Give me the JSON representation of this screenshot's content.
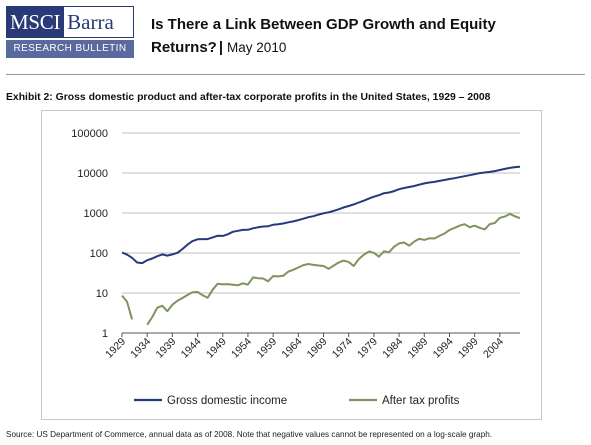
{
  "header": {
    "logo_msci": "MSCI",
    "logo_barra": "Barra",
    "logo_sub": "RESEARCH BULLETIN",
    "title_line1": "Is There a Link Between GDP Growth and Equity",
    "title_line2": "Returns?",
    "title_sep": "|",
    "date": "May 2010"
  },
  "exhibit_title": "Exhibit 2: Gross domestic product and after-tax corporate profits in the United States, 1929 – 2008",
  "source": "Source: US Department of Commerce, annual data as of 2008. Note that negative values cannot be represented on a log-scale graph.",
  "colors": {
    "gdp": "#253a7a",
    "profits": "#7f9360",
    "logo": "#2a3a78"
  },
  "chart_data": {
    "type": "line",
    "title": "",
    "xlabel": "",
    "ylabel": "",
    "yscale": "log",
    "ylim": [
      1,
      100000
    ],
    "xlim": [
      1929,
      2008
    ],
    "y_tick_labels": [
      "1",
      "10",
      "100",
      "1000",
      "10000",
      "100000"
    ],
    "x_tick_labels": [
      "1929",
      "1934",
      "1939",
      "1944",
      "1949",
      "1954",
      "1959",
      "1964",
      "1969",
      "1974",
      "1979",
      "1984",
      "1989",
      "1994",
      "1999",
      "2004"
    ],
    "grid": "horizontal",
    "legend": "bottom",
    "series": [
      {
        "name": "Gross domestic income",
        "x": [
          1929,
          1930,
          1931,
          1932,
          1933,
          1934,
          1935,
          1936,
          1937,
          1938,
          1939,
          1940,
          1941,
          1942,
          1943,
          1944,
          1945,
          1946,
          1947,
          1948,
          1949,
          1950,
          1951,
          1952,
          1953,
          1954,
          1955,
          1956,
          1957,
          1958,
          1959,
          1960,
          1961,
          1962,
          1963,
          1964,
          1965,
          1966,
          1967,
          1968,
          1969,
          1970,
          1971,
          1972,
          1973,
          1974,
          1975,
          1976,
          1977,
          1978,
          1979,
          1980,
          1981,
          1982,
          1983,
          1984,
          1985,
          1986,
          1987,
          1988,
          1989,
          1990,
          1991,
          1992,
          1993,
          1994,
          1995,
          1996,
          1997,
          1998,
          1999,
          2000,
          2001,
          2002,
          2003,
          2004,
          2005,
          2006,
          2007,
          2008
        ],
        "y": [
          103,
          91,
          76,
          58,
          56,
          66,
          73,
          83,
          92,
          86,
          92,
          101,
          126,
          162,
          198,
          220,
          223,
          223,
          245,
          270,
          268,
          294,
          339,
          358,
          379,
          381,
          414,
          438,
          461,
          467,
          507,
          526,
          545,
          586,
          618,
          664,
          719,
          787,
          832,
          910,
          985,
          1039,
          1127,
          1238,
          1383,
          1500,
          1638,
          1825,
          2030,
          2294,
          2562,
          2789,
          3128,
          3255,
          3537,
          3933,
          4220,
          4463,
          4740,
          5104,
          5484,
          5801,
          5992,
          6342,
          6667,
          7085,
          7415,
          7839,
          8332,
          8794,
          9354,
          9952,
          10286,
          10643,
          11142,
          11868,
          12638,
          13399,
          14061,
          14369
        ]
      },
      {
        "name": "After tax profits",
        "x": [
          1929,
          1930,
          1931,
          1932,
          1933,
          1934,
          1935,
          1936,
          1937,
          1938,
          1939,
          1940,
          1941,
          1942,
          1943,
          1944,
          1945,
          1946,
          1947,
          1948,
          1949,
          1950,
          1951,
          1952,
          1953,
          1954,
          1955,
          1956,
          1957,
          1958,
          1959,
          1960,
          1961,
          1962,
          1963,
          1964,
          1965,
          1966,
          1967,
          1968,
          1969,
          1970,
          1971,
          1972,
          1973,
          1974,
          1975,
          1976,
          1977,
          1978,
          1979,
          1980,
          1981,
          1982,
          1983,
          1984,
          1985,
          1986,
          1987,
          1988,
          1989,
          1990,
          1991,
          1992,
          1993,
          1994,
          1995,
          1996,
          1997,
          1998,
          1999,
          2000,
          2001,
          2002,
          2003,
          2004,
          2005,
          2006,
          2007,
          2008
        ],
        "y": [
          8.6,
          6.1,
          2.2,
          null,
          null,
          1.6,
          2.5,
          4.3,
          4.8,
          3.5,
          5.1,
          6.4,
          7.5,
          8.9,
          10.4,
          10.6,
          8.8,
          7.6,
          12.1,
          17.1,
          16.4,
          16.7,
          16.1,
          15.6,
          17.5,
          16.2,
          24.6,
          23.4,
          23.1,
          19.6,
          26.4,
          26.0,
          26.9,
          34.3,
          38.0,
          43.4,
          49.8,
          53.0,
          50.5,
          48.6,
          47.2,
          40.3,
          48.4,
          57.4,
          64.6,
          59.2,
          47.6,
          70.2,
          89.9,
          109,
          101,
          80.6,
          110,
          104,
          144,
          174,
          183,
          152,
          193,
          226,
          212,
          233,
          230,
          268,
          305,
          376,
          424,
          482,
          524,
          442,
          482,
          427,
          390,
          528,
          563,
          760,
          818,
          951,
          828,
          740
        ]
      }
    ]
  }
}
